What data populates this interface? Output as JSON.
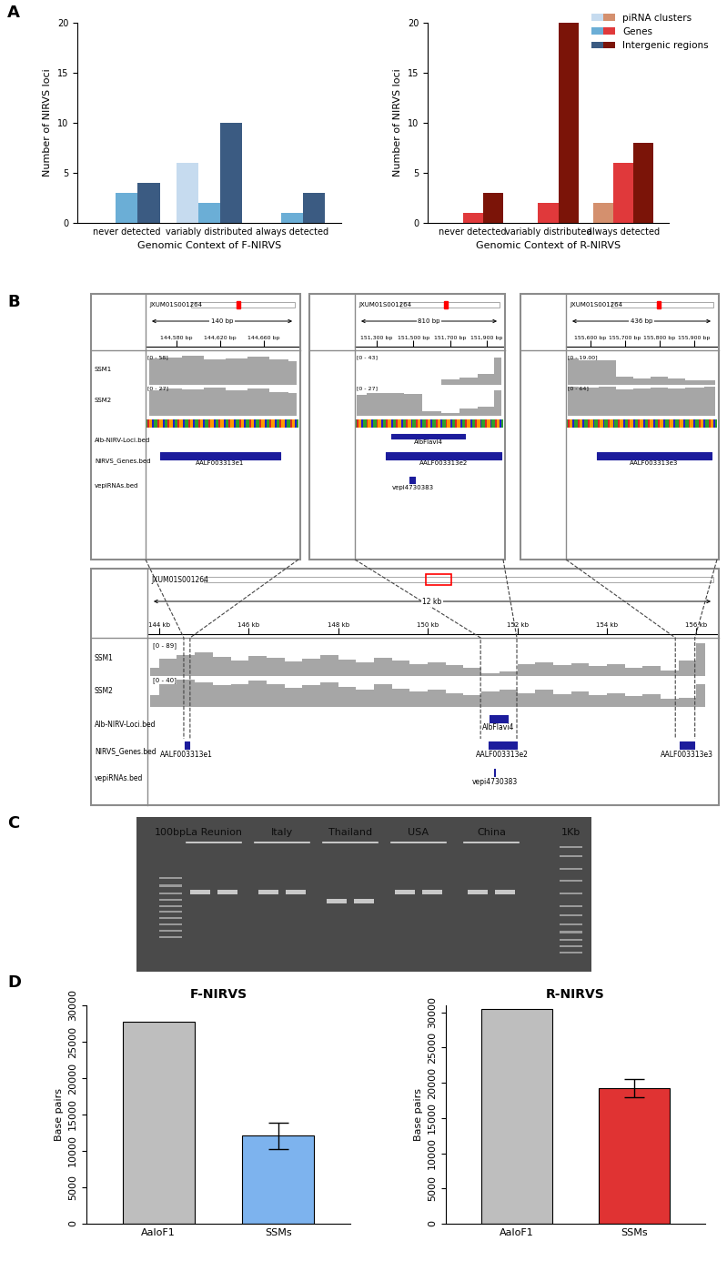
{
  "panel_labels": [
    "A",
    "B",
    "C",
    "D"
  ],
  "chart_data": [
    {
      "type": "bar",
      "xlabel": "Genomic Context of F-NIRVS",
      "ylabel": "Number of NIRVS loci",
      "categories": [
        "never detected",
        "variably distributed",
        "always detected"
      ],
      "series": [
        {
          "name": "piRNA clusters",
          "color": "#c6dbef",
          "values": [
            0,
            6,
            0
          ]
        },
        {
          "name": "Genes",
          "color": "#6baed6",
          "values": [
            3,
            2,
            1
          ]
        },
        {
          "name": "Intergenic regions",
          "color": "#3b5b82",
          "values": [
            4,
            10,
            3
          ]
        }
      ],
      "ylim": [
        0,
        20
      ],
      "yticks": [
        0,
        5,
        10,
        15,
        20
      ]
    },
    {
      "type": "bar",
      "xlabel": "Genomic Context of R-NIRVS",
      "ylabel": "Number of NIRVS loci",
      "categories": [
        "never detected",
        "variably distributed",
        "always detected"
      ],
      "series": [
        {
          "name": "piRNA clusters",
          "color": "#d4906e",
          "values": [
            0,
            0,
            2
          ]
        },
        {
          "name": "Genes",
          "color": "#e0393b",
          "values": [
            1,
            2,
            6
          ]
        },
        {
          "name": "Intergenic regions",
          "color": "#7b1408",
          "values": [
            3,
            20,
            8
          ]
        }
      ],
      "ylim": [
        0,
        20
      ],
      "yticks": [
        0,
        5,
        10,
        15,
        20
      ],
      "legend": "upper right"
    },
    {
      "type": "bar",
      "title": "F-NIRVS",
      "ylabel": "Base pairs",
      "categories": [
        "AaloF1",
        "SSMs"
      ],
      "values": [
        27800,
        12100
      ],
      "errors": [
        null,
        1800
      ],
      "colors": [
        "#bebebe",
        "#7db3ee"
      ],
      "ylim": [
        0,
        30000
      ],
      "yticks": [
        0,
        5000,
        10000,
        15000,
        20000,
        25000,
        30000
      ]
    },
    {
      "type": "bar",
      "title": "R-NIRVS",
      "ylabel": "Base pairs",
      "categories": [
        "AaloF1",
        "SSMs"
      ],
      "values": [
        30500,
        19300
      ],
      "errors": [
        null,
        1300
      ],
      "colors": [
        "#bebebe",
        "#e03333"
      ],
      "ylim": [
        0,
        31000
      ],
      "yticks": [
        0,
        5000,
        10000,
        15000,
        20000,
        25000,
        30000
      ]
    }
  ],
  "genome_browser": {
    "contig": "JXUM01S001264",
    "track_names": [
      "SSM1",
      "SSM2",
      "Alb-NIRV-Loci.bed",
      "NIRVS_Genes.bed",
      "vepiRNAs.bed"
    ],
    "features": [
      {
        "track": "Alb-NIRV-Loci.bed",
        "name": "AlbFlavi4",
        "start": 151.38,
        "end": 151.78
      },
      {
        "track": "NIRVS_Genes.bed",
        "name": "AALF003313e1",
        "start": 144.565,
        "end": 144.675
      },
      {
        "track": "NIRVS_Genes.bed",
        "name": "AALF003313e2",
        "start": 151.35,
        "end": 151.98
      },
      {
        "track": "NIRVS_Genes.bed",
        "name": "AALF003313e3",
        "start": 155.62,
        "end": 155.95
      },
      {
        "track": "vepiRNAs.bed",
        "name": "vepi4730383",
        "start": 151.48,
        "end": 151.51
      }
    ],
    "main": {
      "span_label": "12 kb",
      "window": [
        143.74,
        156.46
      ],
      "ruler_ticks": [
        {
          "value": 144,
          "label": "144 kb"
        },
        {
          "value": 146,
          "label": "146 kb"
        },
        {
          "value": 148,
          "label": "148 kb"
        },
        {
          "value": 150,
          "label": "150 kb"
        },
        {
          "value": 152,
          "label": "152 kb"
        },
        {
          "value": 154,
          "label": "154 kb"
        },
        {
          "value": 156,
          "label": "156 kb"
        }
      ],
      "positions": [
        143.8,
        144.2,
        144.6,
        145.0,
        145.4,
        145.8,
        146.2,
        146.6,
        147.0,
        147.4,
        147.8,
        148.2,
        148.6,
        149.0,
        149.4,
        149.8,
        150.2,
        150.6,
        151.0,
        151.4,
        151.8,
        152.2,
        152.6,
        153.0,
        153.4,
        153.8,
        154.2,
        154.6,
        155.0,
        155.4,
        155.8,
        156.2
      ],
      "coverage": [
        {
          "track": "SSM1",
          "scale": [
            0,
            89
          ],
          "scale_label": "[0 - 89]",
          "values": [
            20,
            45,
            55,
            60,
            50,
            40,
            52,
            48,
            38,
            45,
            55,
            42,
            35,
            48,
            40,
            30,
            35,
            28,
            22,
            8,
            12,
            30,
            35,
            28,
            32,
            25,
            30,
            22,
            26,
            15,
            40,
            85
          ]
        },
        {
          "track": "SSM2",
          "scale": [
            0,
            40
          ],
          "scale_label": "[0 - 40]",
          "values": [
            15,
            30,
            35,
            32,
            28,
            30,
            34,
            30,
            25,
            28,
            32,
            26,
            22,
            30,
            24,
            20,
            22,
            18,
            15,
            20,
            22,
            18,
            22,
            16,
            20,
            15,
            18,
            14,
            16,
            10,
            12,
            30
          ]
        }
      ]
    },
    "zooms": [
      {
        "span_label": "140 bp",
        "window": [
          144.552,
          144.692
        ],
        "ruler_ticks": [
          {
            "value": 144.58,
            "label": "144,580 bp"
          },
          {
            "value": 144.62,
            "label": "144,620 bp"
          },
          {
            "value": 144.66,
            "label": "144,660 bp"
          }
        ],
        "positions": [
          144.555,
          144.575,
          144.595,
          144.615,
          144.635,
          144.655,
          144.675,
          144.69
        ],
        "coverage": [
          {
            "track": "SSM1",
            "scale": [
              0,
              58
            ],
            "scale_label": "[0 - 58]",
            "values": [
              50,
              52,
              55,
              48,
              50,
              53,
              47,
              45
            ]
          },
          {
            "track": "SSM2",
            "scale": [
              0,
              27
            ],
            "scale_label": "[0 - 27]",
            "values": [
              22,
              24,
              23,
              25,
              22,
              24,
              21,
              20
            ]
          }
        ]
      },
      {
        "span_label": "810 bp",
        "window": [
          151.18,
          151.99
        ],
        "ruler_ticks": [
          {
            "value": 151.3,
            "label": "151,300 bp"
          },
          {
            "value": 151.5,
            "label": "151,500 bp"
          },
          {
            "value": 151.7,
            "label": "151,700 bp"
          },
          {
            "value": 151.9,
            "label": "151,900 bp"
          }
        ],
        "positions": [
          151.19,
          151.3,
          151.4,
          151.5,
          151.6,
          151.7,
          151.8,
          151.9,
          151.98
        ],
        "coverage": [
          {
            "track": "SSM1",
            "scale": [
              0,
              43
            ],
            "scale_label": "[0 - 43]",
            "values": [
              0,
              0,
              0,
              0,
              0,
              8,
              10,
              15,
              38
            ]
          },
          {
            "track": "SSM2",
            "scale": [
              0,
              27
            ],
            "scale_label": "[0 - 27]",
            "values": [
              18,
              20,
              20,
              19,
              4,
              2,
              6,
              8,
              22
            ]
          }
        ]
      },
      {
        "span_label": "436 bp",
        "window": [
          155.53,
          155.966
        ],
        "ruler_ticks": [
          {
            "value": 155.6,
            "label": "155,600 bp"
          },
          {
            "value": 155.7,
            "label": "155,700 bp"
          },
          {
            "value": 155.8,
            "label": "155,800 bp"
          },
          {
            "value": 155.9,
            "label": "155,900 bp"
          }
        ],
        "positions": [
          155.535,
          155.6,
          155.65,
          155.7,
          155.75,
          155.8,
          155.85,
          155.9,
          155.96
        ],
        "coverage": [
          {
            "track": "SSM1",
            "scale": [
              0,
              19
            ],
            "scale_label": "[0 - 19.00]",
            "values": [
              16,
              15,
              15,
              5,
              4,
              5,
              4,
              3,
              3
            ]
          },
          {
            "track": "SSM2",
            "scale": [
              0,
              64
            ],
            "scale_label": "[0 - 64]",
            "values": [
              60,
              58,
              60,
              55,
              57,
              58,
              56,
              58,
              60
            ]
          }
        ]
      }
    ]
  },
  "gel": {
    "ladders": [
      "100bp",
      "1Kb"
    ],
    "populations": [
      "La Reunion",
      "Italy",
      "Thailand",
      "USA",
      "China"
    ]
  }
}
